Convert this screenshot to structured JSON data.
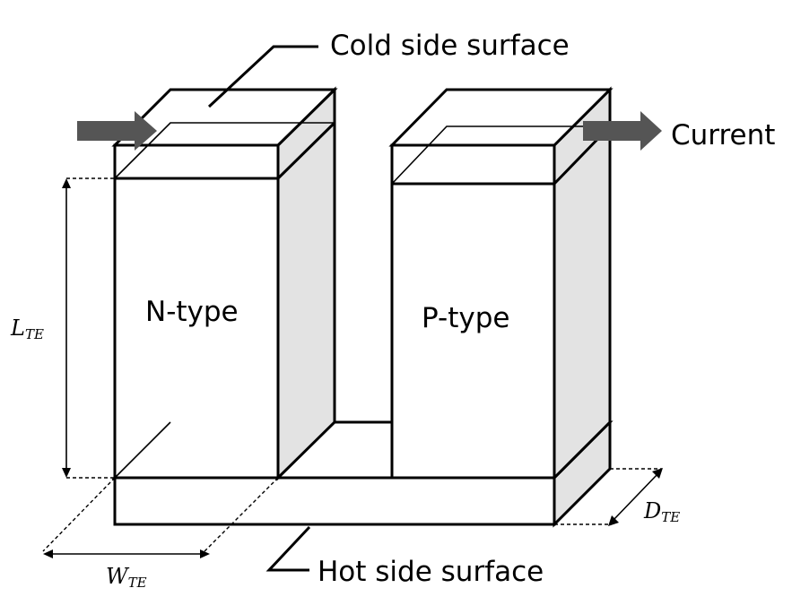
{
  "labels": {
    "cold_side": "Cold side surface",
    "hot_side": "Hot side surface",
    "current": "Current",
    "n_type": "N-type",
    "p_type": "P-type"
  },
  "dimensions": {
    "length": {
      "main": "L",
      "sub": "TE"
    },
    "width": {
      "main": "W",
      "sub": "TE"
    },
    "depth": {
      "main": "D",
      "sub": "TE"
    }
  },
  "colors": {
    "side_face": "#e3e3e3",
    "current_arrow": "#555555",
    "line": "#000000"
  }
}
